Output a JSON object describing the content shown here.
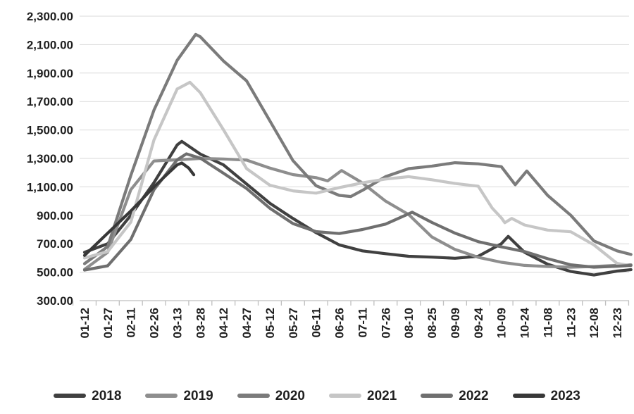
{
  "chart_data": {
    "type": "line",
    "title": "",
    "xlabel": "",
    "ylabel": "",
    "ylim": [
      300,
      2300
    ],
    "grid": true,
    "legend_position": "bottom",
    "gridline_color": "#d9d9d9",
    "axis_line_color": "#bfbfbf",
    "x_labels": [
      "01-12",
      "01-27",
      "02-11",
      "02-26",
      "03-13",
      "03-28",
      "04-12",
      "04-27",
      "05-12",
      "05-27",
      "06-11",
      "06-26",
      "07-11",
      "07-26",
      "08-10",
      "08-25",
      "09-09",
      "09-24",
      "10-09",
      "10-24",
      "11-08",
      "11-23",
      "12-08",
      "12-23"
    ],
    "y_ticks": {
      "values": [
        2300,
        2100,
        1900,
        1700,
        1500,
        1300,
        1100,
        900,
        700,
        500,
        300
      ],
      "labels": [
        "2,300.00",
        "2,100.00",
        "1,900.00",
        "1,700.00",
        "1,500.00",
        "1,300.00",
        "1,100.00",
        "900.00",
        "700.00",
        "500.00",
        "300.00"
      ]
    },
    "series": [
      {
        "name": "2018",
        "color": "#404040",
        "points": [
          [
            0,
            640
          ],
          [
            1,
            700
          ],
          [
            2,
            900
          ],
          [
            3,
            1130
          ],
          [
            4,
            1395
          ],
          [
            4.2,
            1420
          ],
          [
            5,
            1330
          ],
          [
            6,
            1255
          ],
          [
            7,
            1120
          ],
          [
            8,
            985
          ],
          [
            9,
            878
          ],
          [
            10,
            778
          ],
          [
            11,
            692
          ],
          [
            12,
            650
          ],
          [
            13,
            630
          ],
          [
            14,
            612
          ],
          [
            15,
            606
          ],
          [
            16,
            598
          ],
          [
            17,
            612
          ],
          [
            18,
            700
          ],
          [
            18.3,
            752
          ],
          [
            19,
            640
          ],
          [
            20,
            556
          ],
          [
            21,
            505
          ],
          [
            22,
            480
          ],
          [
            23,
            508
          ],
          [
            23.6,
            518
          ]
        ]
      },
      {
        "name": "2019",
        "color": "#8e8e8e",
        "points": [
          [
            0,
            520
          ],
          [
            1,
            640
          ],
          [
            2,
            1080
          ],
          [
            3,
            1282
          ],
          [
            4,
            1290
          ],
          [
            5,
            1300
          ],
          [
            6,
            1296
          ],
          [
            7,
            1288
          ],
          [
            8,
            1232
          ],
          [
            9,
            1186
          ],
          [
            10,
            1165
          ],
          [
            10.5,
            1142
          ],
          [
            11.1,
            1215
          ],
          [
            12,
            1128
          ],
          [
            13,
            1000
          ],
          [
            14,
            905
          ],
          [
            15,
            748
          ],
          [
            16,
            660
          ],
          [
            17,
            605
          ],
          [
            18,
            570
          ],
          [
            19,
            548
          ],
          [
            20,
            540
          ],
          [
            21,
            535
          ],
          [
            22,
            540
          ],
          [
            23,
            548
          ],
          [
            23.6,
            552
          ]
        ]
      },
      {
        "name": "2020",
        "color": "#7b7b7b",
        "points": [
          [
            0,
            560
          ],
          [
            1,
            680
          ],
          [
            2,
            1180
          ],
          [
            3,
            1640
          ],
          [
            4,
            1990
          ],
          [
            4.8,
            2172
          ],
          [
            5,
            2155
          ],
          [
            6,
            1985
          ],
          [
            7,
            1845
          ],
          [
            8,
            1565
          ],
          [
            9,
            1285
          ],
          [
            10,
            1108
          ],
          [
            11,
            1040
          ],
          [
            11.5,
            1032
          ],
          [
            12,
            1075
          ],
          [
            13,
            1172
          ],
          [
            14,
            1228
          ],
          [
            15,
            1246
          ],
          [
            16,
            1270
          ],
          [
            17,
            1262
          ],
          [
            18,
            1242
          ],
          [
            18.6,
            1115
          ],
          [
            19.1,
            1212
          ],
          [
            20,
            1040
          ],
          [
            21,
            900
          ],
          [
            22,
            720
          ],
          [
            23,
            650
          ],
          [
            23.6,
            625
          ]
        ]
      },
      {
        "name": "2021",
        "color": "#c6c6c6",
        "points": [
          [
            0,
            600
          ],
          [
            1,
            645
          ],
          [
            2,
            852
          ],
          [
            3,
            1430
          ],
          [
            4,
            1788
          ],
          [
            4.55,
            1835
          ],
          [
            5,
            1762
          ],
          [
            6,
            1502
          ],
          [
            7,
            1228
          ],
          [
            8,
            1112
          ],
          [
            9,
            1072
          ],
          [
            10,
            1056
          ],
          [
            11,
            1095
          ],
          [
            12,
            1128
          ],
          [
            13,
            1155
          ],
          [
            14,
            1172
          ],
          [
            15,
            1150
          ],
          [
            16,
            1124
          ],
          [
            17,
            1105
          ],
          [
            17.6,
            952
          ],
          [
            18,
            882
          ],
          [
            18.15,
            848
          ],
          [
            18.45,
            878
          ],
          [
            19,
            832
          ],
          [
            20,
            796
          ],
          [
            21,
            784
          ],
          [
            22,
            692
          ],
          [
            23,
            562
          ],
          [
            23.6,
            545
          ]
        ]
      },
      {
        "name": "2022",
        "color": "#6f6f6f",
        "points": [
          [
            0,
            515
          ],
          [
            1,
            545
          ],
          [
            2,
            730
          ],
          [
            3,
            1080
          ],
          [
            4,
            1290
          ],
          [
            4.4,
            1332
          ],
          [
            5,
            1302
          ],
          [
            6,
            1196
          ],
          [
            7,
            1088
          ],
          [
            8,
            950
          ],
          [
            9,
            842
          ],
          [
            10,
            785
          ],
          [
            11,
            772
          ],
          [
            12,
            800
          ],
          [
            13,
            838
          ],
          [
            14.15,
            922
          ],
          [
            15,
            850
          ],
          [
            16,
            775
          ],
          [
            17,
            715
          ],
          [
            18,
            678
          ],
          [
            19,
            645
          ],
          [
            20,
            595
          ],
          [
            21,
            552
          ],
          [
            22,
            535
          ],
          [
            23,
            542
          ],
          [
            23.6,
            548
          ]
        ]
      },
      {
        "name": "2023",
        "color": "#383838",
        "points": [
          [
            0,
            618
          ],
          [
            1,
            775
          ],
          [
            2,
            930
          ],
          [
            3,
            1100
          ],
          [
            3.5,
            1178
          ],
          [
            4,
            1255
          ],
          [
            4.2,
            1268
          ],
          [
            4.5,
            1232
          ],
          [
            4.72,
            1185
          ]
        ]
      }
    ]
  }
}
